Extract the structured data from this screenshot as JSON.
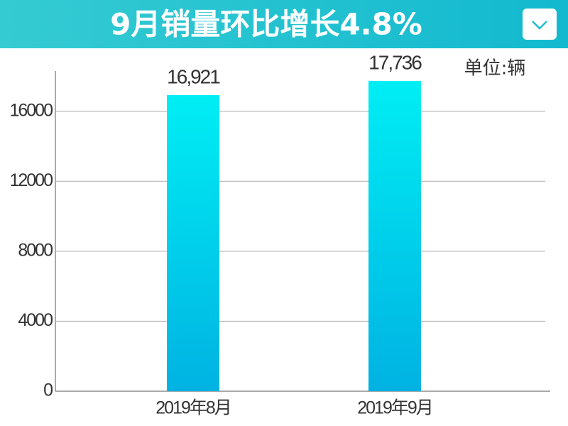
{
  "chart_data": {
    "type": "bar",
    "title": "9月销量环比增长4.8%",
    "unit": "单位:辆",
    "categories": [
      "2019年8月",
      "2019年9月"
    ],
    "values": [
      16921,
      17736
    ],
    "value_labels": [
      "16,921",
      "17,736"
    ],
    "gradient": [
      "#00eef4",
      "#00b2e2"
    ],
    "ylim": [
      0,
      18300
    ],
    "yticks": [
      0,
      4000,
      8000,
      12000,
      16000
    ],
    "grid": true
  }
}
